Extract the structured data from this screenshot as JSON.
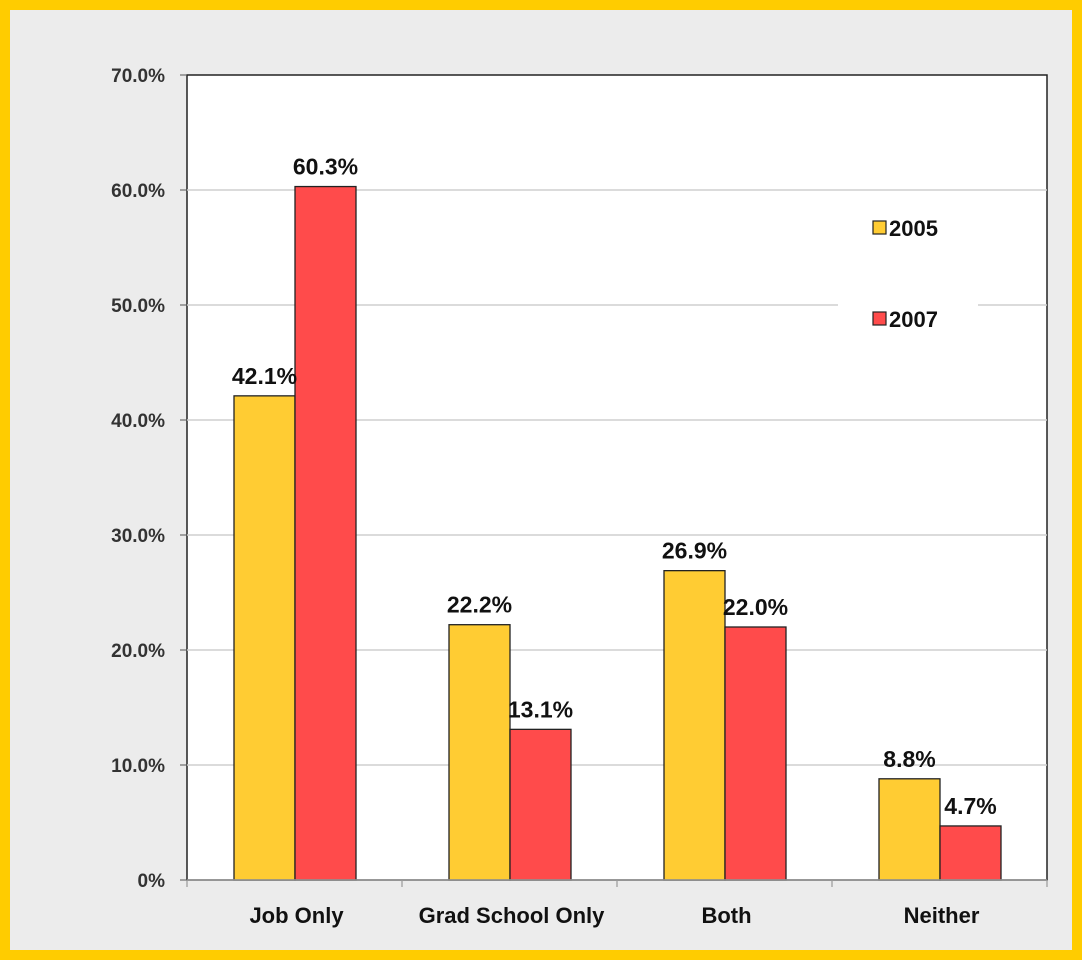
{
  "chart_data": {
    "type": "bar",
    "categories": [
      "Job Only",
      "Grad School Only",
      "Both",
      "Neither"
    ],
    "series": [
      {
        "name": "2005",
        "values": [
          42.1,
          22.2,
          26.9,
          8.8
        ],
        "labels": [
          "42.1%",
          "22.2%",
          "26.9%",
          "8.8%"
        ],
        "color": "#ffcc33"
      },
      {
        "name": "2007",
        "values": [
          60.3,
          13.1,
          22.0,
          4.7
        ],
        "labels": [
          "60.3%",
          "13.1%",
          "22.0%",
          "4.7%"
        ],
        "color": "#ff4b4b"
      }
    ],
    "ylim": [
      0,
      70
    ],
    "yticks": [
      0,
      10,
      20,
      30,
      40,
      50,
      60,
      70
    ],
    "ytick_labels": [
      "0%",
      "10.0%",
      "20.0%",
      "30.0%",
      "40.0%",
      "50.0%",
      "60.0%",
      "70.0%"
    ],
    "grid": true,
    "legend": "top-right",
    "title": "",
    "xlabel": "",
    "ylabel": ""
  },
  "colors": {
    "frame_border": "#ffcc00",
    "background": "#ececec",
    "plot_background": "#ffffff"
  }
}
